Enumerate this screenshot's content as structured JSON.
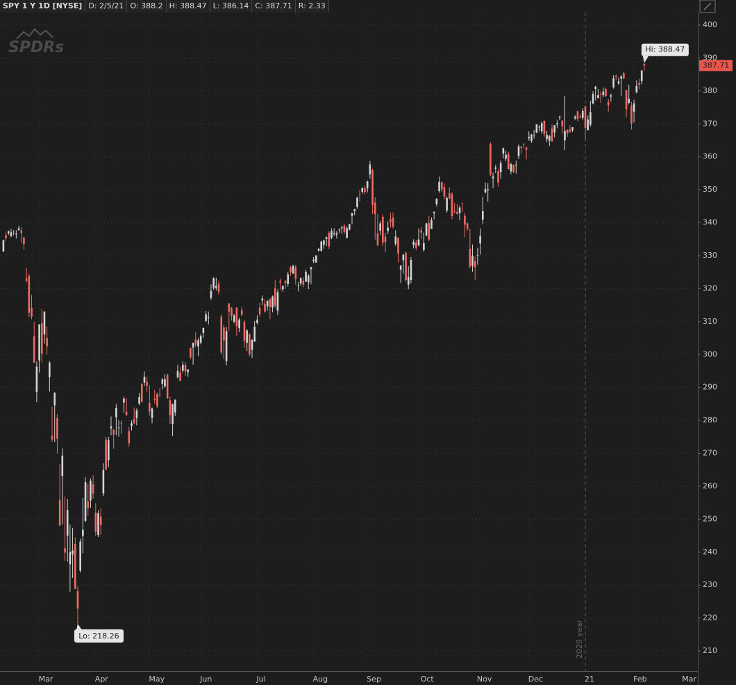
{
  "header": {
    "symbol": "SPY 1 Y 1D [NYSE]",
    "fields": [
      "D: 2/5/21",
      "O: 388.2",
      "H: 388.47",
      "L: 386.14",
      "C: 387.71",
      "R: 2.33"
    ]
  },
  "chart_data": {
    "type": "candlestick",
    "watermark": "SPDRs",
    "categories": [
      null,
      null,
      null,
      null,
      null,
      null,
      null,
      null,
      null,
      null,
      null,
      null,
      null,
      null,
      "Mar",
      null,
      null,
      null,
      null,
      null,
      null,
      null,
      null,
      null,
      null,
      null,
      null,
      null,
      null,
      null,
      null,
      null,
      null,
      null,
      null,
      null,
      "Apr",
      null,
      null,
      null,
      null,
      null,
      null,
      null,
      null,
      null,
      null,
      null,
      null,
      null,
      null,
      null,
      null,
      null,
      null,
      null,
      null,
      "May",
      null,
      null,
      null,
      null,
      null,
      null,
      null,
      null,
      null,
      null,
      null,
      null,
      null,
      null,
      null,
      null,
      null,
      null,
      null,
      "Jun",
      null,
      null,
      null,
      null,
      null,
      null,
      null,
      null,
      null,
      null,
      null,
      null,
      null,
      null,
      null,
      null,
      null,
      null,
      null,
      null,
      null,
      "Jul",
      null,
      null,
      null,
      null,
      null,
      null,
      null,
      null,
      null,
      null,
      null,
      null,
      null,
      null,
      null,
      null,
      null,
      null,
      null,
      null,
      null,
      "Aug",
      null,
      null,
      null,
      null,
      null,
      null,
      null,
      null,
      null,
      null,
      null,
      null,
      null,
      null,
      null,
      null,
      null,
      null,
      null,
      null,
      "Sep",
      null,
      null,
      null,
      null,
      null,
      null,
      null,
      null,
      null,
      null,
      null,
      null,
      null,
      null,
      null,
      null,
      null,
      null,
      null,
      null,
      "Oct",
      null,
      null,
      null,
      null,
      null,
      null,
      null,
      null,
      null,
      null,
      null,
      null,
      null,
      null,
      null,
      null,
      null,
      null,
      null,
      null,
      null,
      "Nov",
      null,
      null,
      null,
      null,
      null,
      null,
      null,
      null,
      null,
      null,
      null,
      null,
      null,
      null,
      null,
      null,
      null,
      null,
      null,
      "Dec",
      null,
      null,
      null,
      null,
      null,
      null,
      null,
      null,
      null,
      null,
      null,
      null,
      null,
      null,
      null,
      null,
      null,
      null,
      null,
      null,
      null,
      "21",
      null,
      null,
      null,
      null,
      null,
      null,
      null,
      null,
      null,
      null,
      null,
      null,
      null,
      null,
      null,
      null,
      null,
      null,
      "Feb",
      null,
      null,
      null,
      null,
      null,
      null,
      null,
      null,
      null,
      null,
      null,
      null,
      null,
      null,
      null,
      null,
      null,
      null,
      "Mar"
    ],
    "open": [
      331.2,
      336.2,
      336.8,
      335.9,
      337.5,
      336.5,
      337.8,
      337.7,
      335.5,
      323.1,
      323.9,
      314.2,
      305.5,
      288.7,
      298.2,
      309.5,
      306.1,
      304.98,
      293.1,
      275.3,
      284.6,
      280.7,
      255.9,
      263.1,
      241.2,
      245.0,
      236.3,
      239.3,
      242.5,
      228.2,
      234.4,
      244.9,
      249.5,
      255.5,
      255.7,
      260.6,
      252.0,
      245.2,
      250.8,
      257.8,
      274.2,
      267.9,
      277.6,
      277.1,
      280.98,
      277.6,
      279.2,
      285.4,
      282.6,
      276.7,
      278.3,
      280.5,
      280.7,
      285.1,
      291.0,
      291.5,
      291.7,
      285.3,
      280.7,
      286.6,
      288.0,
      287.8,
      291.1,
      290.3,
      293.8,
      286.1,
      278.9,
      282.4,
      293.1,
      294.4,
      295.1,
      296.8,
      294.6,
      301.9,
      302.1,
      304.6,
      302.5,
      303.6,
      306.6,
      310.2,
      311.1,
      317.2,
      320.2,
      320.3,
      321.4,
      311.5,
      308.2,
      298.0,
      315.5,
      314.1,
      310.0,
      314.2,
      307.99,
      313.5,
      309.8,
      303.5,
      306.2,
      301.4,
      303.99,
      309.6,
      314.2,
      316.4,
      315.4,
      314.6,
      316.8,
      314.3,
      320.1,
      313.3,
      322.4,
      319.8,
      322.3,
      321.4,
      326.5,
      324.6,
      326.5,
      320.9,
      321.6,
      322.4,
      322.1,
      321.9,
      325.9,
      328.3,
      327.9,
      331.5,
      331.5,
      333.3,
      335.1,
      336.9,
      335.4,
      336.6,
      336.4,
      337.9,
      338.3,
      339.1,
      335.4,
      337.9,
      342.1,
      343.5,
      344.8,
      348.5,
      349.4,
      350.4,
      350.4,
      354.7,
      355.9,
      346.1,
      336.7,
      337.6,
      341.8,
      335.8,
      337.5,
      341.1,
      341.5,
      333.6,
      335.4,
      325.7,
      328.6,
      330.9,
      321.2,
      322.6,
      333.2,
      333.97,
      333.1,
      337.7,
      331.7,
      336.1,
      339.9,
      338.1,
      342.9,
      345.6,
      349.6,
      352.3,
      350.8,
      343.7,
      348.96,
      348.7,
      343.5,
      343.3,
      342.96,
      345.9,
      342.1,
      339.8,
      332.1,
      326.9,
      328.3,
      330.2,
      333.7,
      340.9,
      349.2,
      349.9,
      363.97,
      353.5,
      356.4,
      355.6,
      355.3,
      360.98,
      359.4,
      360.9,
      355.6,
      357.5,
      357.3,
      360.2,
      363.1,
      363.8,
      362.8,
      365.6,
      364.8,
      366.7,
      367.3,
      369.0,
      367.7,
      370.9,
      365.4,
      364.9,
      368.6,
      367.4,
      369.8,
      371.9,
      370.97,
      364.97,
      368.2,
      368.3,
      368.1,
      371.7,
      373.8,
      372.3,
      371.8,
      375.3,
      368.1,
      369.7,
      376.2,
      380.6,
      377.85,
      378.9,
      378.7,
      380.6,
      376.7,
      378.3,
      381.1,
      384.5,
      382.25,
      383.7,
      385.4,
      380.2,
      376.4,
      375.6,
      373.7,
      379.65,
      382.4,
      382.96,
      388.2,
      null,
      null,
      null,
      null,
      null,
      null,
      null,
      null,
      null,
      null,
      null,
      null,
      null,
      null,
      null
    ],
    "high": [
      334.8,
      337.0,
      337.6,
      338.1,
      337.7,
      337.7,
      339.1,
      338.6,
      335.8,
      326.2,
      324.6,
      318.1,
      309.9,
      297.9,
      309.2,
      313.8,
      313.1,
      308.5,
      298.0,
      284.2,
      288.5,
      281.9,
      266.7,
      271.5,
      256.9,
      256.2,
      248.4,
      247.4,
      244.5,
      229.7,
      244.1,
      256.4,
      262.8,
      260.8,
      262.4,
      263.3,
      254.8,
      252.7,
      253.3,
      267.0,
      275.0,
      275.0,
      281.2,
      277.5,
      284.9,
      280.0,
      280.0,
      287.3,
      286.8,
      278.0,
      280.0,
      283.9,
      283.7,
      288.3,
      291.4,
      294.9,
      293.3,
      290.7,
      283.9,
      289.3,
      288.5,
      289.8,
      292.9,
      294.0,
      294.2,
      287.2,
      285.1,
      286.3,
      296.8,
      296.2,
      297.9,
      297.7,
      295.6,
      302.2,
      303.6,
      306.8,
      304.96,
      306.2,
      308.1,
      313.2,
      313.0,
      321.3,
      323.4,
      323.3,
      322.4,
      312.2,
      309.1,
      308.3,
      315.6,
      314.4,
      312.3,
      314.4,
      311.1,
      314.5,
      310.5,
      307.6,
      306.4,
      304.6,
      310.2,
      311.9,
      315.7,
      317.9,
      316.7,
      316.5,
      317.1,
      317.9,
      322.7,
      319.8,
      323.0,
      320.9,
      322.6,
      325.1,
      326.9,
      327.2,
      327.2,
      321.99,
      323.4,
      323.4,
      325.7,
      324.4,
      326.6,
      329.6,
      330.1,
      332.4,
      334.5,
      334.9,
      335.8,
      337.5,
      338.3,
      338.3,
      337.4,
      338.3,
      339.1,
      339.6,
      338.8,
      339.7,
      343.0,
      344.2,
      347.9,
      349.9,
      350.7,
      351.3,
      352.7,
      358.75,
      356.4,
      347.8,
      342.6,
      340.5,
      342.5,
      336.97,
      340.4,
      343.06,
      343.1,
      337.7,
      335.5,
      327.1,
      330.5,
      331.2,
      326.8,
      329.6,
      334.96,
      334.8,
      338.3,
      338.7,
      337.0,
      339.96,
      342.0,
      341.6,
      343.4,
      347.4,
      354.0,
      352.5,
      351.9,
      348.0,
      350.75,
      349.3,
      346.0,
      345.7,
      345.2,
      345.99,
      342.98,
      340.1,
      338.2,
      333.4,
      329.7,
      332.4,
      338.25,
      347.9,
      352.2,
      352.0,
      364.4,
      355.2,
      357.6,
      356.4,
      358.9,
      362.8,
      361.9,
      361.5,
      358.2,
      357.7,
      358.8,
      363.8,
      363.2,
      364.2,
      363.1,
      367.7,
      366.96,
      368.2,
      369.9,
      369.6,
      370.8,
      371.05,
      367.9,
      366.7,
      369.8,
      369.6,
      371.2,
      372.5,
      371.15,
      378.5,
      368.3,
      369.6,
      369.0,
      372.6,
      374.0,
      373.1,
      374.7,
      375.45,
      372.5,
      376.98,
      379.9,
      381.5,
      380.6,
      379.9,
      380.9,
      381.1,
      377.6,
      379.2,
      384.8,
      384.95,
      384.1,
      384.8,
      385.85,
      380.3,
      381.9,
      376.7,
      377.3,
      383.2,
      383.7,
      386.2,
      388.47,
      null,
      null,
      null,
      null,
      null,
      null,
      null,
      null,
      null,
      null,
      null,
      null,
      null,
      null,
      null
    ],
    "low": [
      331.2,
      334.5,
      336.3,
      335.6,
      336.2,
      335.2,
      337.5,
      333.9,
      331.8,
      321.9,
      311.3,
      310.7,
      297.5,
      285.5,
      294.5,
      297.6,
      303.3,
      300.0,
      288.8,
      273.5,
      273.5,
      270.0,
      248.0,
      248.5,
      237.4,
      237.1,
      228.0,
      232.2,
      228.8,
      218.26,
      233.8,
      239.7,
      249.1,
      251.1,
      253.5,
      256.2,
      244.9,
      244.6,
      245.2,
      257.0,
      264.9,
      265.8,
      275.5,
      271.4,
      275.5,
      275.0,
      275.8,
      282.4,
      281.4,
      272.0,
      276.9,
      278.9,
      278.5,
      284.6,
      285.4,
      290.4,
      288.6,
      281.5,
      279.1,
      285.1,
      283.8,
      287.1,
      289.4,
      289.9,
      286.5,
      278.9,
      275.2,
      281.3,
      292.7,
      291.9,
      294.5,
      293.6,
      293.2,
      298.7,
      296.9,
      302.2,
      299.5,
      303.1,
      305.1,
      309.9,
      309.1,
      316.5,
      319.6,
      319.4,
      318.2,
      300.0,
      298.6,
      296.7,
      307.2,
      310.3,
      309.5,
      305.6,
      306.8,
      311.6,
      302.1,
      301.0,
      299.4,
      298.9,
      303.8,
      309.1,
      311.5,
      315.0,
      312.7,
      313.3,
      310.7,
      312.8,
      314.1,
      312.0,
      319.5,
      319.0,
      319.9,
      320.6,
      323.9,
      324.5,
      321.2,
      319.2,
      320.8,
      320.4,
      322.1,
      319.8,
      321.3,
      327.7,
      327.9,
      331.2,
      331.1,
      332.0,
      332.9,
      332.0,
      335.0,
      335.9,
      335.2,
      336.9,
      336.6,
      336.6,
      335.2,
      337.7,
      339.5,
      342.3,
      344.2,
      346.5,
      348.8,
      348.6,
      349.2,
      353.4,
      342.6,
      334.9,
      332.9,
      336.2,
      332.9,
      331.0,
      336.6,
      338.5,
      338.2,
      332.99,
      327.97,
      321.7,
      324.5,
      322.1,
      319.8,
      321.6,
      332.2,
      331.6,
      332.9,
      335.0,
      331.2,
      336.0,
      334.4,
      338.1,
      341.0,
      344.9,
      349.1,
      349.3,
      347.1,
      343.1,
      347.1,
      341.0,
      342.8,
      342.3,
      340.7,
      343.2,
      335.6,
      337.5,
      326.1,
      325.1,
      322.6,
      327.2,
      330.3,
      339.6,
      348.9,
      346.4,
      354.1,
      350.5,
      355.1,
      350.9,
      353.3,
      359.6,
      358.7,
      356.2,
      354.7,
      355.1,
      354.9,
      359.3,
      360.9,
      362.6,
      359.2,
      364.9,
      364.2,
      365.5,
      367.2,
      367.7,
      367.0,
      365.95,
      364.4,
      363.3,
      364.5,
      365.9,
      368.7,
      371.1,
      367.0,
      362.0,
      366.0,
      367.2,
      367.5,
      371.1,
      370.8,
      371.6,
      371.2,
      364.8,
      368.05,
      369.1,
      375.9,
      377.1,
      377.7,
      376.4,
      378.1,
      378.1,
      373.7,
      376.75,
      380.7,
      383.25,
      381.8,
      378.5,
      383.5,
      372.0,
      375.9,
      368.3,
      370.4,
      379.2,
      380.5,
      381.96,
      386.14,
      null,
      null,
      null,
      null,
      null,
      null,
      null,
      null,
      null,
      null,
      null,
      null,
      null,
      null,
      null
    ],
    "close": [
      334.7,
      335.3,
      337.4,
      337.1,
      337.6,
      336.7,
      338.3,
      336.9,
      333.5,
      322.4,
      312.7,
      311.5,
      297.5,
      296.3,
      309.1,
      300.2,
      313.0,
      302.5,
      297.5,
      274.2,
      288.4,
      274.4,
      248.1,
      269.3,
      239.9,
      252.8,
      240.0,
      240.5,
      228.8,
      222.9,
      243.2,
      246.8,
      261.2,
      253.4,
      261.7,
      257.75,
      246.2,
      251.8,
      248.2,
      264.9,
      265.1,
      274.0,
      278.2,
      275.7,
      283.8,
      277.8,
      279.1,
      286.6,
      281.6,
      273.0,
      279.1,
      279.1,
      283.0,
      287.1,
      285.7,
      293.2,
      290.5,
      282.8,
      283.6,
      286.2,
      284.3,
      287.7,
      292.4,
      292.5,
      286.7,
      281.6,
      284.97,
      286.3,
      295.0,
      291.97,
      296.9,
      294.9,
      295.4,
      299.1,
      303.5,
      302.97,
      304.3,
      305.6,
      308.1,
      312.2,
      311.4,
      319.3,
      323.2,
      320.8,
      319.0,
      300.6,
      304.2,
      307.1,
      312.96,
      311.7,
      311.8,
      308.6,
      310.6,
      312.1,
      304.1,
      307.35,
      300.05,
      304.5,
      308.4,
      310.5,
      312.2,
      317.0,
      313.0,
      316.3,
      314.4,
      317.6,
      314.8,
      318.9,
      321.85,
      320.8,
      321.7,
      324.3,
      325.0,
      326.9,
      322.96,
      320.9,
      323.2,
      321.2,
      325.1,
      323.96,
      326.5,
      328.8,
      330.1,
      332.1,
      334.3,
      334.6,
      335.6,
      332.8,
      337.4,
      336.8,
      336.8,
      337.9,
      338.6,
      337.2,
      338.3,
      339.5,
      342.9,
      344.1,
      347.6,
      348.3,
      350.6,
      349.3,
      352.6,
      357.7,
      345.4,
      342.6,
      333.2,
      339.8,
      333.9,
      334.1,
      338.5,
      340.2,
      338.8,
      335.8,
      330.65,
      326.97,
      330.3,
      322.6,
      323.5,
      328.7,
      334.2,
      332.4,
      334.9,
      337.0,
      333.8,
      339.8,
      334.9,
      340.8,
      343.3,
      347.3,
      352.4,
      350.1,
      347.9,
      347.5,
      347.3,
      342.0,
      343.4,
      342.7,
      344.6,
      345.8,
      339.4,
      338.2,
      326.7,
      329.98,
      326.5,
      330.2,
      336.0,
      343.5,
      350.2,
      350.2,
      354.6,
      354.0,
      356.7,
      352.2,
      358.1,
      362.6,
      360.6,
      356.3,
      357.8,
      355.3,
      357.5,
      363.2,
      362.7,
      363.7,
      362.1,
      366.0,
      366.8,
      366.7,
      369.85,
      369.1,
      370.2,
      366.85,
      366.7,
      366.3,
      364.7,
      369.6,
      370.2,
      372.2,
      369.2,
      367.9,
      367.2,
      367.6,
      369.0,
      372.2,
      371.5,
      372.0,
      373.9,
      368.8,
      371.3,
      373.55,
      379.1,
      381.3,
      378.7,
      378.8,
      379.8,
      378.5,
      375.7,
      378.65,
      383.9,
      384.2,
      382.9,
      384.4,
      383.8,
      374.4,
      377.6,
      370.1,
      376.2,
      381.55,
      381.85,
      386.2,
      387.71,
      null,
      null,
      null,
      null,
      null,
      null,
      null,
      null,
      null,
      null,
      null,
      null,
      null,
      null,
      null
    ],
    "up_color": "#d4d4d4",
    "down_color": "#ee6b63",
    "last_price_color": "#e8554d",
    "ylim": [
      203.9,
      403.8
    ],
    "yticks": [
      210,
      220,
      230,
      240,
      250,
      260,
      270,
      280,
      290,
      300,
      310,
      320,
      330,
      340,
      350,
      360,
      370,
      380,
      390,
      400
    ],
    "grid": true,
    "high_label": "Hi: 388.47",
    "low_label": "Lo: 218.26",
    "last_price_label": "387.71",
    "year_label": "2020 year"
  }
}
